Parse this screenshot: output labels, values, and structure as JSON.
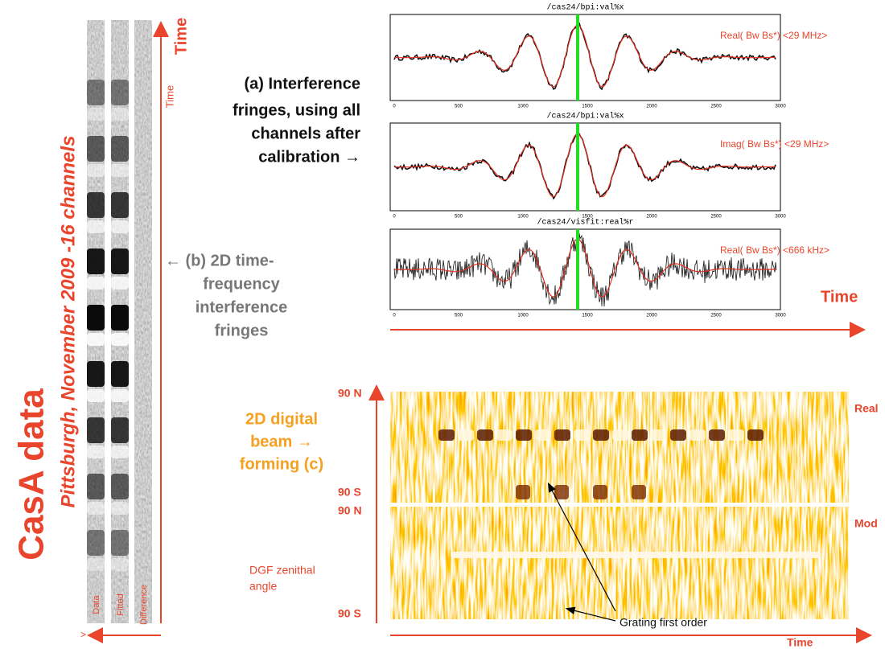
{
  "left_title": "CasA data",
  "left_subtitle": "Pittsburgh, November 2009 -16 channels",
  "strip_labels": [
    "Data",
    "Fitted",
    "Difference"
  ],
  "strip_time_labels": [
    "Time",
    "Time"
  ],
  "strip_arrow_label": ">",
  "annotation_a": [
    "(a) Interference",
    "fringes, using all",
    "channels after",
    "calibration →"
  ],
  "annotation_b": [
    "← (b) 2D time-",
    "frequency",
    "interference",
    "fringes"
  ],
  "plots": [
    {
      "title": "/cas24/bpi:val%x",
      "label": "Real( Bw Bs*)   <29 MHz>"
    },
    {
      "title": "/cas24/bpi:val%x",
      "label": "Imag( Bw Bs*)   <29 MHz>"
    },
    {
      "title": "/cas24/visfit:real%r",
      "label": "Real( Bw Bs*)   <666 kHz>"
    }
  ],
  "plot_xticks": [
    "0",
    "500",
    "1000",
    "1500",
    "2000",
    "2500",
    "3000"
  ],
  "plots_time_label": "Time",
  "beamforming": {
    "annotation": [
      "2D digital",
      "beam →",
      "forming (c)"
    ],
    "panels": [
      {
        "label": "Real",
        "top": "90 N",
        "bottom": "90 S"
      },
      {
        "label": "Mod",
        "top": "90 N",
        "bottom": "90 S"
      }
    ],
    "axis_label": [
      "DGF zenithal",
      "angle"
    ],
    "callout": "Grating first order",
    "time_label": "Time"
  }
}
